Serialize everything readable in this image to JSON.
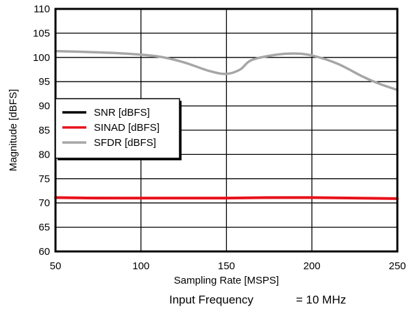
{
  "chart_data": {
    "type": "line",
    "xlabel": "Sampling Rate [MSPS]",
    "ylabel": "Magnitude [dBFS]",
    "xlim": [
      50,
      250
    ],
    "ylim": [
      60,
      110
    ],
    "xticks": [
      50,
      100,
      150,
      200,
      250
    ],
    "yticks": [
      60,
      65,
      70,
      75,
      80,
      85,
      90,
      95,
      100,
      105,
      110
    ],
    "grid": true,
    "legend_position": "left",
    "annotation": {
      "label": "Input Frequency",
      "value": "= 10 MHz"
    },
    "series": [
      {
        "name": "SNR [dBFS]",
        "color": "#000000",
        "x": [
          50,
          100,
          150,
          200,
          250
        ],
        "y": [
          71.1,
          71.0,
          71.0,
          71.1,
          70.9
        ]
      },
      {
        "name": "SINAD [dBFS]",
        "color": "#e8111a",
        "x": [
          50,
          75,
          100,
          125,
          150,
          175,
          200,
          225,
          250
        ],
        "y": [
          71.1,
          71.0,
          71.0,
          71.0,
          71.0,
          71.1,
          71.1,
          71.0,
          70.9
        ]
      },
      {
        "name": "SFDR [dBFS]",
        "color": "#a6a6a6",
        "x": [
          50,
          70,
          90,
          110,
          125,
          140,
          150,
          158,
          165,
          180,
          190,
          200,
          215,
          230,
          240,
          250
        ],
        "y": [
          101.3,
          101.1,
          100.8,
          100.2,
          99.0,
          97.2,
          96.6,
          97.5,
          99.5,
          100.6,
          100.8,
          100.4,
          98.7,
          96.0,
          94.5,
          93.3
        ]
      }
    ]
  }
}
